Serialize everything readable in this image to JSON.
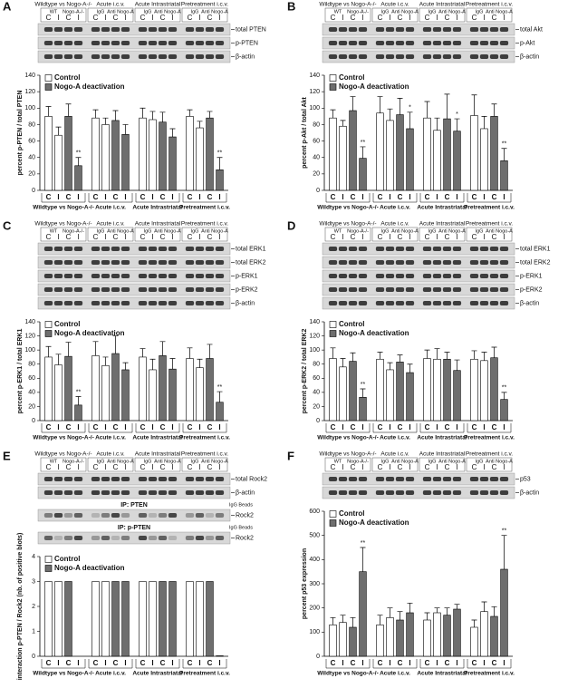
{
  "chart_data": [
    {
      "type": "bar",
      "panel": "A",
      "ylabel": "percent p-PTEN / total PTEN",
      "groups": [
        "Wildtype vs Nogo-A-/-",
        "Acute i.c.v.",
        "Acute Intrastriatal",
        "Pretreatment i.c.v."
      ],
      "subgroups": [
        "WT",
        "Nogo-A-/-",
        "IgG",
        "Anti Nogo-A",
        "IgG",
        "Anti Nogo-A",
        "IgG",
        "Anti Nogo-A"
      ],
      "categories": [
        "C",
        "I",
        "C",
        "I",
        "C",
        "I",
        "C",
        "I",
        "C",
        "I",
        "C",
        "I",
        "C",
        "I",
        "C",
        "I"
      ],
      "blot": {
        "labels": [
          "total PTEN",
          "p-PTEN",
          "β-actin"
        ]
      },
      "ylim": [
        0,
        140
      ],
      "yticks": [
        0,
        20,
        40,
        60,
        80,
        100,
        120,
        140
      ],
      "series": [
        {
          "name": "Control",
          "color": "#ffffff",
          "values": [
            90,
            67,
            null,
            null,
            88,
            80,
            null,
            null,
            88,
            86,
            null,
            null,
            90,
            76,
            null,
            null
          ],
          "errors": [
            12,
            10,
            null,
            null,
            10,
            8,
            null,
            null,
            12,
            10,
            null,
            null,
            8,
            8,
            null,
            null
          ]
        },
        {
          "name": "Nogo-A deactivation",
          "color": "#6e6e6e",
          "values": [
            null,
            null,
            90,
            30,
            null,
            null,
            85,
            68,
            null,
            null,
            83,
            65,
            null,
            null,
            88,
            25
          ],
          "errors": [
            null,
            null,
            15,
            10,
            null,
            null,
            12,
            12,
            null,
            null,
            12,
            10,
            null,
            null,
            8,
            15
          ]
        }
      ],
      "significance": [
        null,
        null,
        null,
        "**",
        null,
        null,
        null,
        null,
        null,
        null,
        null,
        null,
        null,
        null,
        null,
        "**"
      ]
    },
    {
      "type": "bar",
      "panel": "B",
      "ylabel": "percent p-Akt / total Akt",
      "groups": [
        "Wildtype vs Nogo-A-/-",
        "Acute i.c.v.",
        "Acute Intrastriatal",
        "Pretreatment i.c.v."
      ],
      "subgroups": [
        "WT",
        "Nogo-A-/-",
        "IgG",
        "Anti Nogo-A",
        "IgG",
        "Anti Nogo-A",
        "IgG",
        "Anti Nogo-A"
      ],
      "categories": [
        "C",
        "I",
        "C",
        "I",
        "C",
        "I",
        "C",
        "I",
        "C",
        "I",
        "C",
        "I",
        "C",
        "I",
        "C",
        "I"
      ],
      "blot": {
        "labels": [
          "total Akt",
          "p-Akt",
          "β-actin"
        ]
      },
      "ylim": [
        0,
        140
      ],
      "yticks": [
        0,
        20,
        40,
        60,
        80,
        100,
        120,
        140
      ],
      "series": [
        {
          "name": "Control",
          "color": "#ffffff",
          "values": [
            88,
            78,
            null,
            null,
            94,
            85,
            null,
            null,
            88,
            73,
            null,
            null,
            91,
            75,
            null,
            null
          ],
          "errors": [
            10,
            7,
            null,
            null,
            20,
            14,
            null,
            null,
            20,
            15,
            null,
            null,
            25,
            15,
            null,
            null
          ]
        },
        {
          "name": "Nogo-A deactivation",
          "color": "#6e6e6e",
          "values": [
            null,
            null,
            97,
            39,
            null,
            null,
            92,
            75,
            null,
            null,
            87,
            72,
            null,
            null,
            90,
            36
          ],
          "errors": [
            null,
            null,
            17,
            14,
            null,
            null,
            20,
            20,
            null,
            null,
            30,
            15,
            null,
            null,
            15,
            15
          ]
        }
      ],
      "significance": [
        null,
        null,
        null,
        "**",
        null,
        null,
        null,
        "*",
        null,
        null,
        null,
        "*",
        null,
        null,
        null,
        "**"
      ]
    },
    {
      "type": "bar",
      "panel": "C",
      "ylabel": "percent p-ERK1 / total ERK1",
      "groups": [
        "Wildtype vs Nogo-A-/-",
        "Acute i.c.v.",
        "Acute Intrastriatal",
        "Pretreatment i.c.v."
      ],
      "subgroups": [
        "WT",
        "Nogo-A-/-",
        "IgG",
        "Anti Nogo-A",
        "IgG",
        "Anti Nogo-A",
        "IgG",
        "Anti Nogo-A"
      ],
      "categories": [
        "C",
        "I",
        "C",
        "I",
        "C",
        "I",
        "C",
        "I",
        "C",
        "I",
        "C",
        "I",
        "C",
        "I",
        "C",
        "I"
      ],
      "blot": {
        "labels": [
          "total ERK1",
          "total ERK2",
          "p-ERK1",
          "p-ERK2",
          "β-actin"
        ]
      },
      "ylim": [
        0,
        140
      ],
      "yticks": [
        0,
        20,
        40,
        60,
        80,
        100,
        120,
        140
      ],
      "series": [
        {
          "name": "Control",
          "color": "#ffffff",
          "values": [
            90,
            79,
            null,
            null,
            92,
            78,
            null,
            null,
            90,
            72,
            null,
            null,
            88,
            75,
            null,
            null
          ],
          "errors": [
            15,
            15,
            null,
            null,
            20,
            12,
            null,
            null,
            12,
            15,
            null,
            null,
            15,
            12,
            null,
            null
          ]
        },
        {
          "name": "Nogo-A deactivation",
          "color": "#6e6e6e",
          "values": [
            null,
            null,
            91,
            22,
            null,
            null,
            95,
            72,
            null,
            null,
            92,
            73,
            null,
            null,
            88,
            26
          ],
          "errors": [
            null,
            null,
            20,
            12,
            null,
            null,
            25,
            10,
            null,
            null,
            20,
            15,
            null,
            null,
            20,
            15
          ]
        }
      ],
      "significance": [
        null,
        null,
        null,
        "**",
        null,
        null,
        null,
        null,
        null,
        null,
        null,
        null,
        null,
        null,
        null,
        "**"
      ]
    },
    {
      "type": "bar",
      "panel": "D",
      "ylabel": "percent p-ERK2 / total ERK2",
      "groups": [
        "Wildtype vs Nogo-A-/-",
        "Acute i.c.v.",
        "Acute Intrastriatal",
        "Pretreatment i.c.v."
      ],
      "subgroups": [
        "WT",
        "Nogo-A-/-",
        "IgG",
        "Anti Nogo-A",
        "IgG",
        "Anti Nogo-A",
        "IgG",
        "Anti Nogo-A"
      ],
      "categories": [
        "C",
        "I",
        "C",
        "I",
        "C",
        "I",
        "C",
        "I",
        "C",
        "I",
        "C",
        "I",
        "C",
        "I",
        "C",
        "I"
      ],
      "blot": {
        "labels": [
          "total ERK1",
          "total ERK2",
          "p-ERK1",
          "p-ERK2",
          "β-actin"
        ]
      },
      "ylim": [
        0,
        140
      ],
      "yticks": [
        0,
        20,
        40,
        60,
        80,
        100,
        120,
        140
      ],
      "series": [
        {
          "name": "Control",
          "color": "#ffffff",
          "values": [
            88,
            76,
            null,
            null,
            87,
            72,
            null,
            null,
            88,
            87,
            null,
            null,
            87,
            85,
            null,
            null
          ],
          "errors": [
            15,
            12,
            null,
            null,
            10,
            10,
            null,
            null,
            12,
            15,
            null,
            null,
            12,
            12,
            null,
            null
          ]
        },
        {
          "name": "Nogo-A deactivation",
          "color": "#6e6e6e",
          "values": [
            null,
            null,
            84,
            33,
            null,
            null,
            83,
            68,
            null,
            null,
            87,
            71,
            null,
            null,
            89,
            30
          ],
          "errors": [
            null,
            null,
            12,
            12,
            null,
            null,
            10,
            12,
            null,
            null,
            10,
            15,
            null,
            null,
            15,
            10
          ]
        }
      ],
      "significance": [
        null,
        null,
        null,
        "**",
        null,
        null,
        null,
        null,
        null,
        null,
        null,
        null,
        null,
        null,
        null,
        "**"
      ]
    },
    {
      "type": "bar",
      "panel": "E",
      "ylabel": "interaction p-PTEN / Rock2 (nb. of positive blots)",
      "groups": [
        "Wildtype vs Nogo-A-/-",
        "Acute i.c.v.",
        "Acute Intrastriatal",
        "Pretreatment i.c.v."
      ],
      "subgroups": [
        "WT",
        "Nogo-A-/-",
        "IgG",
        "Anti Nogo-A",
        "IgG",
        "Anti Nogo-A",
        "IgG",
        "Anti Nogo-A"
      ],
      "categories": [
        "C",
        "I",
        "C",
        "I",
        "C",
        "I",
        "C",
        "I",
        "C",
        "I",
        "C",
        "I",
        "C",
        "I",
        "C",
        "I"
      ],
      "blot": {
        "labels": [
          "total Rock2",
          "β-actin",
          "Rock2",
          "Rock2"
        ],
        "ip_titles": [
          "IP: PTEN",
          "IP: p-PTEN"
        ],
        "beads": [
          "IgG Beads",
          "IgG Beads"
        ]
      },
      "ylim": [
        0,
        4
      ],
      "yticks": [
        0,
        1,
        2,
        3,
        4
      ],
      "series": [
        {
          "name": "Control",
          "color": "#ffffff",
          "values": [
            3,
            3,
            null,
            null,
            3,
            3,
            null,
            null,
            3,
            3,
            null,
            null,
            3,
            3,
            null,
            null
          ]
        },
        {
          "name": "Nogo-A deactivation",
          "color": "#6e6e6e",
          "values": [
            null,
            null,
            3,
            0,
            null,
            null,
            3,
            3,
            null,
            null,
            3,
            3,
            null,
            null,
            3,
            0.02
          ]
        }
      ]
    },
    {
      "type": "bar",
      "panel": "F",
      "ylabel": "percent p53 expression",
      "groups": [
        "Wildtype vs Nogo-A-/-",
        "Acute i.c.v.",
        "Acute Intrastriatal",
        "Pretreatment i.c.v."
      ],
      "subgroups": [
        "WT",
        "Nogo-A-/-",
        "IgG",
        "Anti Nogo-A",
        "IgG",
        "Anti Nogo-A",
        "IgG",
        "Anti Nogo-A"
      ],
      "categories": [
        "C",
        "I",
        "C",
        "I",
        "C",
        "I",
        "C",
        "I",
        "C",
        "I",
        "C",
        "I",
        "C",
        "I",
        "C",
        "I"
      ],
      "blot": {
        "labels": [
          "p53",
          "β-actin"
        ]
      },
      "ylim": [
        0,
        600
      ],
      "yticks": [
        0,
        100,
        200,
        300,
        400,
        500,
        600
      ],
      "series": [
        {
          "name": "Control",
          "color": "#ffffff",
          "values": [
            130,
            140,
            null,
            null,
            130,
            160,
            null,
            null,
            150,
            180,
            null,
            null,
            120,
            185,
            null,
            null
          ],
          "errors": [
            30,
            30,
            null,
            null,
            40,
            40,
            null,
            null,
            30,
            20,
            null,
            null,
            30,
            40,
            null,
            null
          ]
        },
        {
          "name": "Nogo-A deactivation",
          "color": "#6e6e6e",
          "values": [
            null,
            null,
            120,
            350,
            null,
            null,
            150,
            180,
            null,
            null,
            170,
            195,
            null,
            null,
            165,
            360
          ],
          "errors": [
            null,
            null,
            40,
            100,
            null,
            null,
            35,
            40,
            null,
            null,
            30,
            20,
            null,
            null,
            40,
            140
          ]
        }
      ],
      "significance": [
        null,
        null,
        null,
        "**",
        null,
        null,
        null,
        null,
        null,
        null,
        null,
        null,
        null,
        null,
        null,
        "**"
      ]
    }
  ]
}
